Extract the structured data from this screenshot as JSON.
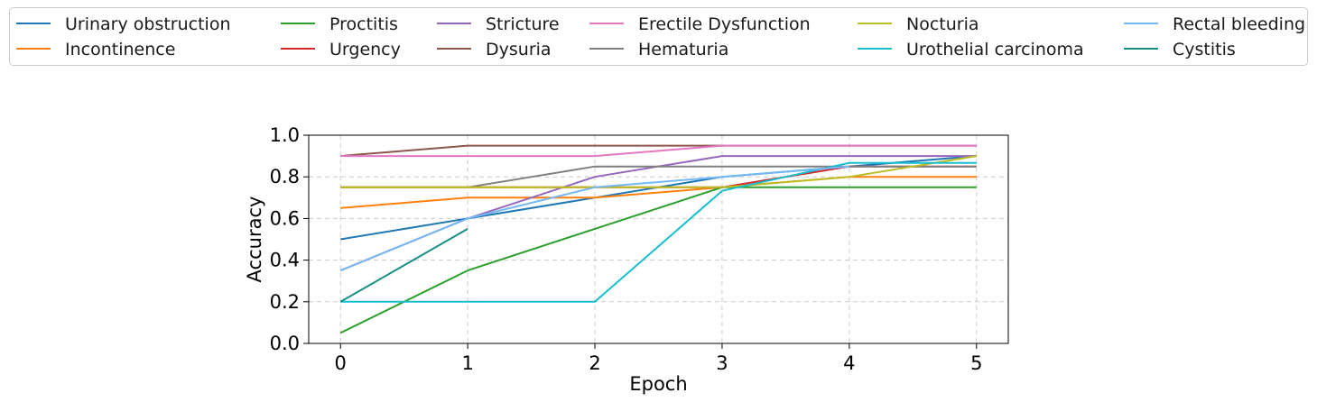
{
  "chart_data": {
    "type": "line",
    "xlabel": "Epoch",
    "ylabel": "Accuracy",
    "x": [
      0,
      1,
      2,
      3,
      4,
      5
    ],
    "xlim": [
      -0.25,
      5.25
    ],
    "ylim": [
      0.0,
      1.0
    ],
    "xticks": [
      "0",
      "1",
      "2",
      "3",
      "4",
      "5"
    ],
    "yticks": [
      "0.0",
      "0.2",
      "0.4",
      "0.6",
      "0.8",
      "1.0"
    ],
    "grid": true,
    "legend_position": "top",
    "series": [
      {
        "name": "Urinary obstruction",
        "color": "#1f77b4",
        "values": [
          0.5,
          0.6,
          0.7,
          0.8,
          0.85,
          0.9
        ]
      },
      {
        "name": "Incontinence",
        "color": "#ff7f0e",
        "values": [
          0.65,
          0.7,
          0.7,
          0.75,
          0.8,
          0.8
        ]
      },
      {
        "name": "Proctitis",
        "color": "#2ca02c",
        "values": [
          0.05,
          0.35,
          0.55,
          0.75,
          0.75,
          0.75
        ]
      },
      {
        "name": "Urgency",
        "color": "#d62728",
        "values": [
          0.75,
          0.75,
          0.75,
          0.75,
          0.85,
          0.85
        ]
      },
      {
        "name": "Stricture",
        "color": "#9467bd",
        "values": [
          0.35,
          0.6,
          0.8,
          0.9,
          0.9,
          0.9
        ]
      },
      {
        "name": "Dysuria",
        "color": "#8c564b",
        "values": [
          0.9,
          0.95,
          0.95,
          0.95,
          0.95,
          0.95
        ]
      },
      {
        "name": "Erectile Dysfunction",
        "color": "#e377c2",
        "values": [
          0.9,
          0.9,
          0.9,
          0.95,
          0.95,
          0.95
        ]
      },
      {
        "name": "Hematuria",
        "color": "#7f7f7f",
        "values": [
          0.75,
          0.75,
          0.85,
          0.85,
          0.85,
          0.85
        ]
      },
      {
        "name": "Nocturia",
        "color": "#bcbd22",
        "values": [
          0.75,
          0.75,
          0.75,
          0.75,
          0.8,
          0.9
        ]
      },
      {
        "name": "Urothelial carcinoma",
        "color": "#17becf",
        "values": [
          0.2,
          0.2,
          0.2,
          0.733,
          0.867,
          0.867
        ]
      },
      {
        "name": "Rectal bleeding",
        "color": "#74b9f5",
        "values": [
          0.35,
          0.6,
          0.75,
          0.8,
          0.85,
          null
        ]
      },
      {
        "name": "Cystitis",
        "color": "#138d85",
        "values": [
          0.2,
          0.55,
          null,
          null,
          null,
          null
        ]
      }
    ]
  }
}
